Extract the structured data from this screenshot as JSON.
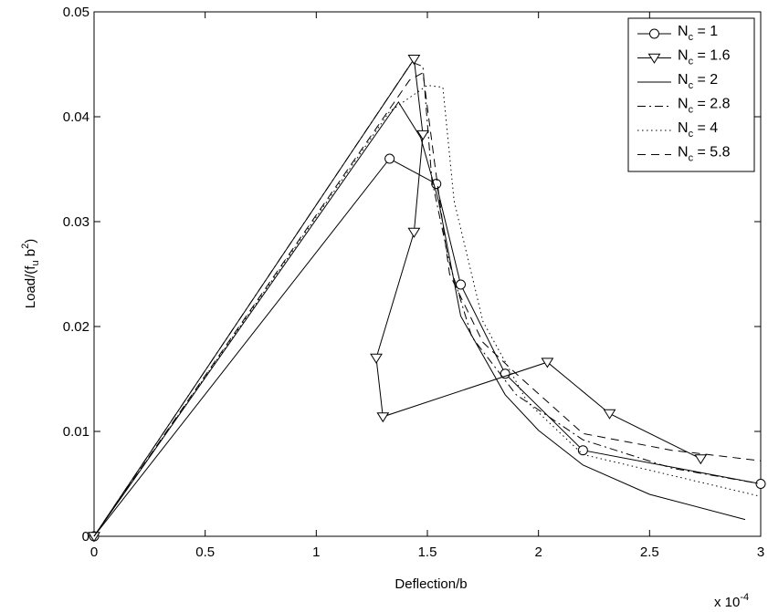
{
  "chart_data": {
    "type": "line",
    "title": "",
    "xlabel": "Deflection/b",
    "ylabel_parts": [
      "Load/(f",
      "u",
      " b",
      "2",
      ")"
    ],
    "x_exponent_label": "x 10",
    "x_exponent_power": "-4",
    "xlim": [
      0,
      3
    ],
    "ylim": [
      0,
      0.05
    ],
    "xticks": [
      0,
      0.5,
      1,
      1.5,
      2,
      2.5,
      3
    ],
    "xtick_labels": [
      "0",
      "0.5",
      "1",
      "1.5",
      "2",
      "2.5",
      "3"
    ],
    "yticks": [
      0,
      0.01,
      0.02,
      0.03,
      0.04,
      0.05
    ],
    "ytick_labels": [
      "0",
      "0.01",
      "0.02",
      "0.03",
      "0.04",
      "0.05"
    ],
    "grid": false,
    "legend_position": "top-right",
    "series": [
      {
        "name_parts": [
          "N",
          "c",
          " = 1"
        ],
        "style": "solid",
        "marker": "circle",
        "x": [
          0,
          1.33,
          1.54,
          1.65,
          1.85,
          2.2,
          3.0
        ],
        "y": [
          0,
          0.036,
          0.0336,
          0.024,
          0.0155,
          0.0082,
          0.005
        ]
      },
      {
        "name_parts": [
          "N",
          "c",
          " = 1.6"
        ],
        "style": "solid",
        "marker": "triangle-down",
        "x": [
          0,
          1.44,
          1.48,
          1.44,
          1.27,
          1.3,
          2.04,
          2.32,
          2.73
        ],
        "y": [
          0,
          0.0455,
          0.0383,
          0.029,
          0.017,
          0.0114,
          0.0166,
          0.0117,
          0.0074
        ],
        "marked_x": [
          0,
          1.44,
          1.48,
          1.44,
          1.27,
          1.3,
          2.04,
          2.32,
          2.73
        ],
        "marked_y": [
          0,
          0.0455,
          0.0383,
          0.029,
          0.017,
          0.0114,
          0.0166,
          0.0117,
          0.0074
        ]
      },
      {
        "name_parts": [
          "N",
          "c",
          " = 2"
        ],
        "style": "solid",
        "marker": "none",
        "x": [
          0,
          1.37,
          1.47,
          1.55,
          1.65,
          1.85,
          2.0,
          2.2,
          2.5,
          2.93
        ],
        "y": [
          0,
          0.0414,
          0.038,
          0.032,
          0.021,
          0.0135,
          0.0101,
          0.0068,
          0.004,
          0.0016
        ]
      },
      {
        "name_parts": [
          "N",
          "c",
          " = 2.8"
        ],
        "style": "dashdot",
        "marker": "none",
        "x": [
          0,
          1.43,
          1.48,
          1.52,
          1.6,
          1.7,
          1.9,
          2.2,
          2.6,
          3.0
        ],
        "y": [
          0,
          0.0452,
          0.0448,
          0.034,
          0.026,
          0.019,
          0.0135,
          0.0092,
          0.0065,
          0.005
        ]
      },
      {
        "name_parts": [
          "N",
          "c",
          " = 4"
        ],
        "style": "dotted",
        "marker": "none",
        "x": [
          0,
          1.33,
          1.5,
          1.57,
          1.62,
          1.75,
          1.95,
          2.2,
          2.6,
          3.0
        ],
        "y": [
          0,
          0.0405,
          0.043,
          0.0428,
          0.032,
          0.0205,
          0.0128,
          0.0078,
          0.0058,
          0.0038
        ]
      },
      {
        "name_parts": [
          "N",
          "c",
          " = 5.8"
        ],
        "style": "dashed",
        "marker": "none",
        "x": [
          0,
          1.42,
          1.48,
          1.53,
          1.6,
          1.75,
          1.9,
          2.2,
          2.6,
          3.0
        ],
        "y": [
          0,
          0.0435,
          0.0442,
          0.036,
          0.025,
          0.0185,
          0.0155,
          0.0098,
          0.0082,
          0.0072
        ]
      }
    ]
  }
}
